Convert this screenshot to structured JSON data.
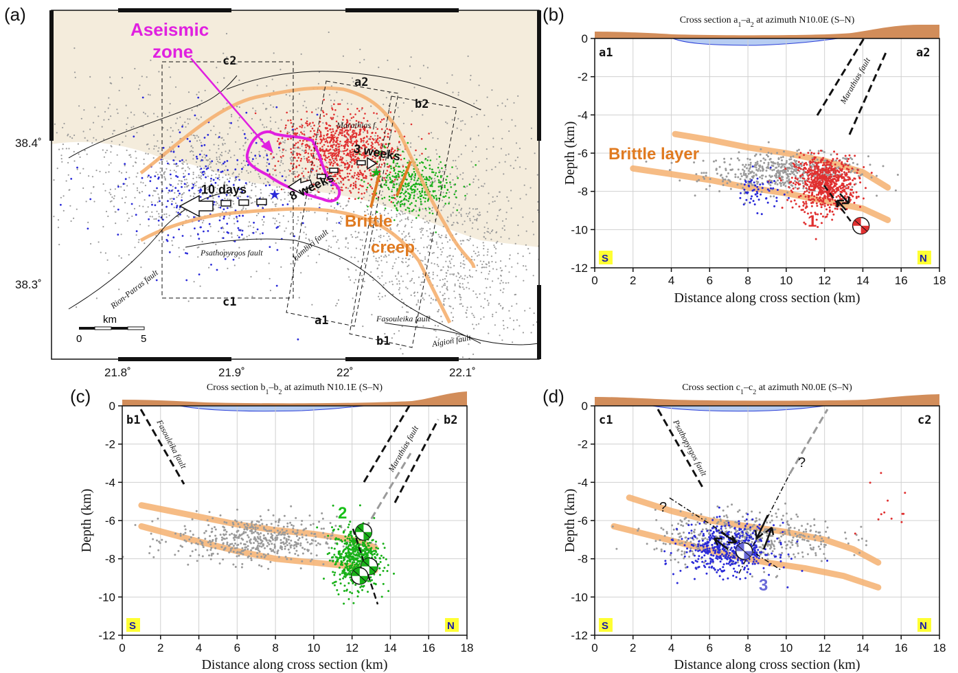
{
  "panels": {
    "a": {
      "letter": "(a)",
      "labels": {
        "aseismic_line1": "Aseismic",
        "aseismic_line2": "zone",
        "brittle_line1": "Brittle",
        "brittle_line2": "creep",
        "weeks3": "3 weeks",
        "weeks8": "8 weeks",
        "days10": "10 days",
        "c2": "c2",
        "c1": "c1",
        "a2": "a2",
        "a1": "a1",
        "b2": "b2",
        "b1": "b1",
        "scale_unit": "km",
        "scale_min": "0",
        "scale_max": "5"
      },
      "faults": {
        "marathias": "Marathias f.",
        "psathopyrgos": "Psathopyrgos fault",
        "lambiri": "Lambiri fault",
        "rion_patras": "Rion-Patras fault",
        "fasouleika": "Fasouleika fault",
        "aigion": "Aigion fault"
      },
      "lat_ticks": [
        "38.4˚",
        "38.3˚"
      ],
      "lon_ticks": [
        "21.8˚",
        "21.9˚",
        "22˚",
        "22.1˚"
      ],
      "colors": {
        "land": "#f4ecdc",
        "blue": "#2a2ad8",
        "red": "#e03030",
        "green": "#18b018",
        "gray": "#9a9a9a",
        "orange": "#f5b070",
        "magenta": "#e020e0"
      }
    },
    "b": {
      "letter": "(b)",
      "title_html": "Cross section a<tspan baseline-shift='sub' font-size='10'>1</tspan>–a<tspan baseline-shift='sub' font-size='10'>2</tspan> at azimuth N10.0E (S–N)",
      "left_mark": "a1",
      "right_mark": "a2",
      "brittle": "Brittle layer",
      "fault": "Marathias fault",
      "event": "1",
      "south": "S",
      "north": "N"
    },
    "c": {
      "letter": "(c)",
      "title_html": "Cross section b<tspan baseline-shift='sub' font-size='10'>1</tspan>–b<tspan baseline-shift='sub' font-size='10'>2</tspan> at azimuth N10.1E (S–N)",
      "left_mark": "b1",
      "right_mark": "b2",
      "fault_left": "Fasouleika fault",
      "fault_right": "Marathias fault",
      "event": "2",
      "south": "S",
      "north": "N"
    },
    "d": {
      "letter": "(d)",
      "title_html": "Cross section c<tspan baseline-shift='sub' font-size='10'>1</tspan>–c<tspan baseline-shift='sub' font-size='10'>2</tspan> at azimuth N0.0E (S–N)",
      "left_mark": "c1",
      "right_mark": "c2",
      "fault": "Psathopyrgos fault",
      "event": "3",
      "question": "?",
      "south": "S",
      "north": "N"
    }
  },
  "axes": {
    "ylabel": "Depth (km)",
    "xlabel": "Distance along cross section (km)",
    "xticks": [
      0,
      2,
      4,
      6,
      8,
      10,
      12,
      14,
      16,
      18
    ],
    "yticks": [
      0,
      -2,
      -4,
      -6,
      -8,
      -10,
      -12
    ]
  },
  "chart_data": [
    {
      "type": "scatter",
      "panel": "b",
      "title": "Cross section a1–a2 at azimuth N10.0E (S–N)",
      "xlabel": "Distance along cross section (km)",
      "ylabel": "Depth (km)",
      "xlim": [
        0,
        18
      ],
      "ylim": [
        -12,
        0
      ],
      "brittle_top": [
        [
          4.2,
          -5.0
        ],
        [
          6,
          -5.3
        ],
        [
          8,
          -5.7
        ],
        [
          10,
          -6.0
        ],
        [
          12,
          -6.4
        ],
        [
          14,
          -7.0
        ],
        [
          15.3,
          -7.8
        ]
      ],
      "brittle_bottom": [
        [
          2.0,
          -6.8
        ],
        [
          4,
          -7.1
        ],
        [
          6,
          -7.4
        ],
        [
          8,
          -7.8
        ],
        [
          10,
          -8.1
        ],
        [
          12,
          -8.5
        ],
        [
          14,
          -8.9
        ],
        [
          15.3,
          -9.5
        ]
      ],
      "series": [
        {
          "color": "#e03030",
          "center": [
            12.0,
            -7.6
          ],
          "spread": [
            1.3,
            1.2
          ],
          "count": 700
        },
        {
          "color": "#9a9a9a",
          "center": [
            10.0,
            -7.0
          ],
          "spread": [
            3.5,
            0.8
          ],
          "count": 500
        },
        {
          "color": "#2a2ad8",
          "center": [
            8.5,
            -8.0
          ],
          "spread": [
            1.0,
            0.8
          ],
          "count": 60
        }
      ],
      "events": [
        {
          "label": "1",
          "x": 13.9,
          "y": -9.8
        }
      ]
    },
    {
      "type": "scatter",
      "panel": "c",
      "title": "Cross section b1–b2 at azimuth N10.1E (S–N)",
      "xlabel": "Distance along cross section (km)",
      "ylabel": "Depth (km)",
      "xlim": [
        0,
        18
      ],
      "ylim": [
        -12,
        0
      ],
      "brittle_top": [
        [
          1.0,
          -5.2
        ],
        [
          4,
          -5.8
        ],
        [
          6,
          -6.2
        ],
        [
          8,
          -6.5
        ],
        [
          10,
          -6.7
        ],
        [
          12,
          -7.0
        ],
        [
          13.2,
          -7.4
        ]
      ],
      "brittle_bottom": [
        [
          1.0,
          -6.3
        ],
        [
          4,
          -7.1
        ],
        [
          6,
          -7.6
        ],
        [
          8,
          -8.0
        ],
        [
          10,
          -8.2
        ],
        [
          12,
          -8.4
        ],
        [
          13.2,
          -8.6
        ]
      ],
      "series": [
        {
          "color": "#18b018",
          "center": [
            12.2,
            -8.0
          ],
          "spread": [
            1.0,
            1.3
          ],
          "count": 600
        },
        {
          "color": "#9a9a9a",
          "center": [
            7.0,
            -7.0
          ],
          "spread": [
            3.5,
            1.0
          ],
          "count": 500
        }
      ],
      "events": [
        {
          "label": "2",
          "x": 12.6,
          "y": -6.6
        },
        {
          "label": "",
          "x": 12.9,
          "y": -8.4
        },
        {
          "label": "",
          "x": 12.4,
          "y": -8.9
        }
      ]
    },
    {
      "type": "scatter",
      "panel": "d",
      "title": "Cross section c1–c2 at azimuth N0.0E (S–N)",
      "xlabel": "Distance along cross section (km)",
      "ylabel": "Depth (km)",
      "xlim": [
        0,
        18
      ],
      "ylim": [
        -12,
        0
      ],
      "brittle_top": [
        [
          1.8,
          -4.8
        ],
        [
          4,
          -5.5
        ],
        [
          6,
          -6.0
        ],
        [
          8,
          -6.3
        ],
        [
          10,
          -6.6
        ],
        [
          12,
          -7.0
        ],
        [
          13.5,
          -7.5
        ],
        [
          14.8,
          -8.2
        ]
      ],
      "brittle_bottom": [
        [
          1.0,
          -6.3
        ],
        [
          3,
          -6.8
        ],
        [
          5,
          -7.3
        ],
        [
          7,
          -7.8
        ],
        [
          9,
          -8.2
        ],
        [
          11,
          -8.5
        ],
        [
          13,
          -8.9
        ],
        [
          14.8,
          -9.5
        ]
      ],
      "series": [
        {
          "color": "#2a2ad8",
          "center": [
            7.0,
            -7.5
          ],
          "spread": [
            2.0,
            1.1
          ],
          "count": 500
        },
        {
          "color": "#9a9a9a",
          "center": [
            8.0,
            -6.9
          ],
          "spread": [
            4.0,
            1.1
          ],
          "count": 500
        },
        {
          "color": "#e03030",
          "center": [
            15.0,
            -5.5
          ],
          "spread": [
            1.5,
            2.5
          ],
          "count": 12
        }
      ],
      "events": [
        {
          "label": "3",
          "x": 7.8,
          "y": -7.6
        }
      ]
    }
  ]
}
